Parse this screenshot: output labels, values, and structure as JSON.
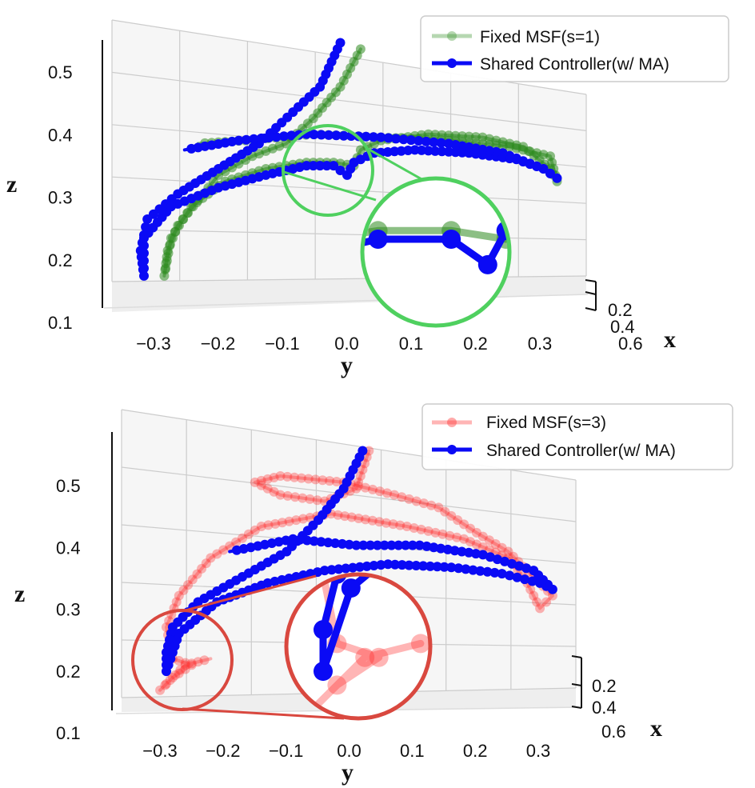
{
  "chart_data": [
    {
      "type": "line",
      "xlabel": "x",
      "ylabel": "y",
      "zlabel": "z",
      "y_ticks": [
        "−0.3",
        "−0.2",
        "−0.1",
        "0.0",
        "0.1",
        "0.2",
        "0.3"
      ],
      "z_ticks": [
        "0.1",
        "0.2",
        "0.3",
        "0.4",
        "0.5"
      ],
      "x_ticks": [
        "0.2",
        "0.4",
        "0.6"
      ],
      "legend_position": "top-right",
      "grid": true,
      "inset": "zoomed circular region",
      "colors": {
        "reference": "#2e8b1f",
        "shared": "#0a0af5",
        "zoom": "#4fd05f"
      },
      "series": [
        {
          "name": "Fixed MSF(s=1)",
          "role": "reference",
          "points_yz": [
            [
              0.02,
              0.53
            ],
            [
              -0.01,
              0.47
            ],
            [
              -0.05,
              0.42
            ],
            [
              -0.09,
              0.38
            ],
            [
              -0.14,
              0.36
            ],
            [
              -0.19,
              0.33
            ],
            [
              -0.22,
              0.29
            ],
            [
              -0.25,
              0.25
            ],
            [
              -0.265,
              0.21
            ],
            [
              -0.27,
              0.17
            ],
            [
              -0.26,
              0.23
            ],
            [
              -0.23,
              0.28
            ],
            [
              -0.18,
              0.32
            ],
            [
              -0.12,
              0.34
            ],
            [
              -0.06,
              0.35
            ],
            [
              -0.02,
              0.35
            ],
            [
              0.01,
              0.345
            ],
            [
              0.02,
              0.37
            ],
            [
              0.05,
              0.385
            ],
            [
              0.12,
              0.395
            ],
            [
              0.2,
              0.39
            ],
            [
              0.26,
              0.375
            ],
            [
              0.3,
              0.34
            ],
            [
              0.31,
              0.32
            ],
            [
              0.3,
              0.36
            ],
            [
              0.24,
              0.375
            ],
            [
              0.15,
              0.385
            ],
            [
              0.05,
              0.39
            ],
            [
              -0.05,
              0.395
            ],
            [
              -0.15,
              0.385
            ],
            [
              -0.22,
              0.38
            ]
          ]
        },
        {
          "name": "Shared Controller(w/ MA)",
          "role": "shared",
          "points_yz": [
            [
              -0.01,
              0.54
            ],
            [
              -0.04,
              0.47
            ],
            [
              -0.08,
              0.43
            ],
            [
              -0.13,
              0.38
            ],
            [
              -0.19,
              0.34
            ],
            [
              -0.25,
              0.3
            ],
            [
              -0.295,
              0.26
            ],
            [
              -0.305,
              0.21
            ],
            [
              -0.3,
              0.17
            ],
            [
              -0.3,
              0.23
            ],
            [
              -0.26,
              0.28
            ],
            [
              -0.19,
              0.31
            ],
            [
              -0.12,
              0.33
            ],
            [
              -0.06,
              0.345
            ],
            [
              -0.02,
              0.345
            ],
            [
              0.0,
              0.33
            ],
            [
              0.01,
              0.35
            ],
            [
              0.04,
              0.365
            ],
            [
              0.1,
              0.37
            ],
            [
              0.18,
              0.365
            ],
            [
              0.25,
              0.355
            ],
            [
              0.29,
              0.34
            ],
            [
              0.31,
              0.325
            ],
            [
              0.29,
              0.34
            ],
            [
              0.23,
              0.365
            ],
            [
              0.15,
              0.38
            ],
            [
              0.05,
              0.39
            ],
            [
              -0.06,
              0.395
            ],
            [
              -0.16,
              0.385
            ],
            [
              -0.24,
              0.37
            ]
          ]
        }
      ]
    },
    {
      "type": "line",
      "xlabel": "x",
      "ylabel": "y",
      "zlabel": "z",
      "y_ticks": [
        "−0.3",
        "−0.2",
        "−0.1",
        "0.0",
        "0.1",
        "0.2",
        "0.3"
      ],
      "z_ticks": [
        "0.1",
        "0.2",
        "0.3",
        "0.4",
        "0.5"
      ],
      "x_ticks": [
        "0.2",
        "0.4",
        "0.6"
      ],
      "legend_position": "top-right",
      "grid": true,
      "inset": "zoomed circular region",
      "colors": {
        "reference": "#ff2a2a",
        "shared": "#0a0af5",
        "zoom": "#d9483f"
      },
      "series": [
        {
          "name": "Fixed MSF(s=3)",
          "role": "reference",
          "points_yz": [
            [
              0.02,
              0.54
            ],
            [
              0.0,
              0.48
            ],
            [
              -0.05,
              0.46
            ],
            [
              -0.12,
              0.47
            ],
            [
              -0.16,
              0.49
            ],
            [
              -0.12,
              0.5
            ],
            [
              -0.02,
              0.49
            ],
            [
              0.06,
              0.47
            ],
            [
              0.13,
              0.45
            ],
            [
              0.19,
              0.41
            ],
            [
              0.24,
              0.38
            ],
            [
              0.28,
              0.34
            ],
            [
              0.31,
              0.31
            ],
            [
              0.29,
              0.29
            ],
            [
              0.27,
              0.33
            ],
            [
              0.24,
              0.37
            ],
            [
              0.17,
              0.4
            ],
            [
              0.08,
              0.42
            ],
            [
              -0.04,
              0.44
            ],
            [
              -0.15,
              0.42
            ],
            [
              -0.23,
              0.37
            ],
            [
              -0.28,
              0.31
            ],
            [
              -0.3,
              0.26
            ],
            [
              -0.29,
              0.21
            ],
            [
              -0.26,
              0.2
            ],
            [
              -0.29,
              0.18
            ],
            [
              -0.31,
              0.16
            ],
            [
              -0.27,
              0.2
            ],
            [
              -0.23,
              0.21
            ]
          ]
        },
        {
          "name": "Shared Controller(w/ MA)",
          "role": "shared",
          "points_yz": [
            [
              0.01,
              0.54
            ],
            [
              -0.02,
              0.48
            ],
            [
              -0.06,
              0.43
            ],
            [
              -0.11,
              0.38
            ],
            [
              -0.18,
              0.34
            ],
            [
              -0.25,
              0.3
            ],
            [
              -0.29,
              0.26
            ],
            [
              -0.3,
              0.22
            ],
            [
              -0.3,
              0.19
            ],
            [
              -0.28,
              0.25
            ],
            [
              -0.22,
              0.3
            ],
            [
              -0.14,
              0.33
            ],
            [
              -0.05,
              0.35
            ],
            [
              0.05,
              0.36
            ],
            [
              0.15,
              0.355
            ],
            [
              0.23,
              0.345
            ],
            [
              0.29,
              0.33
            ],
            [
              0.31,
              0.32
            ],
            [
              0.28,
              0.35
            ],
            [
              0.2,
              0.375
            ],
            [
              0.1,
              0.39
            ],
            [
              0.0,
              0.39
            ],
            [
              -0.1,
              0.4
            ],
            [
              -0.2,
              0.38
            ]
          ]
        }
      ]
    }
  ]
}
